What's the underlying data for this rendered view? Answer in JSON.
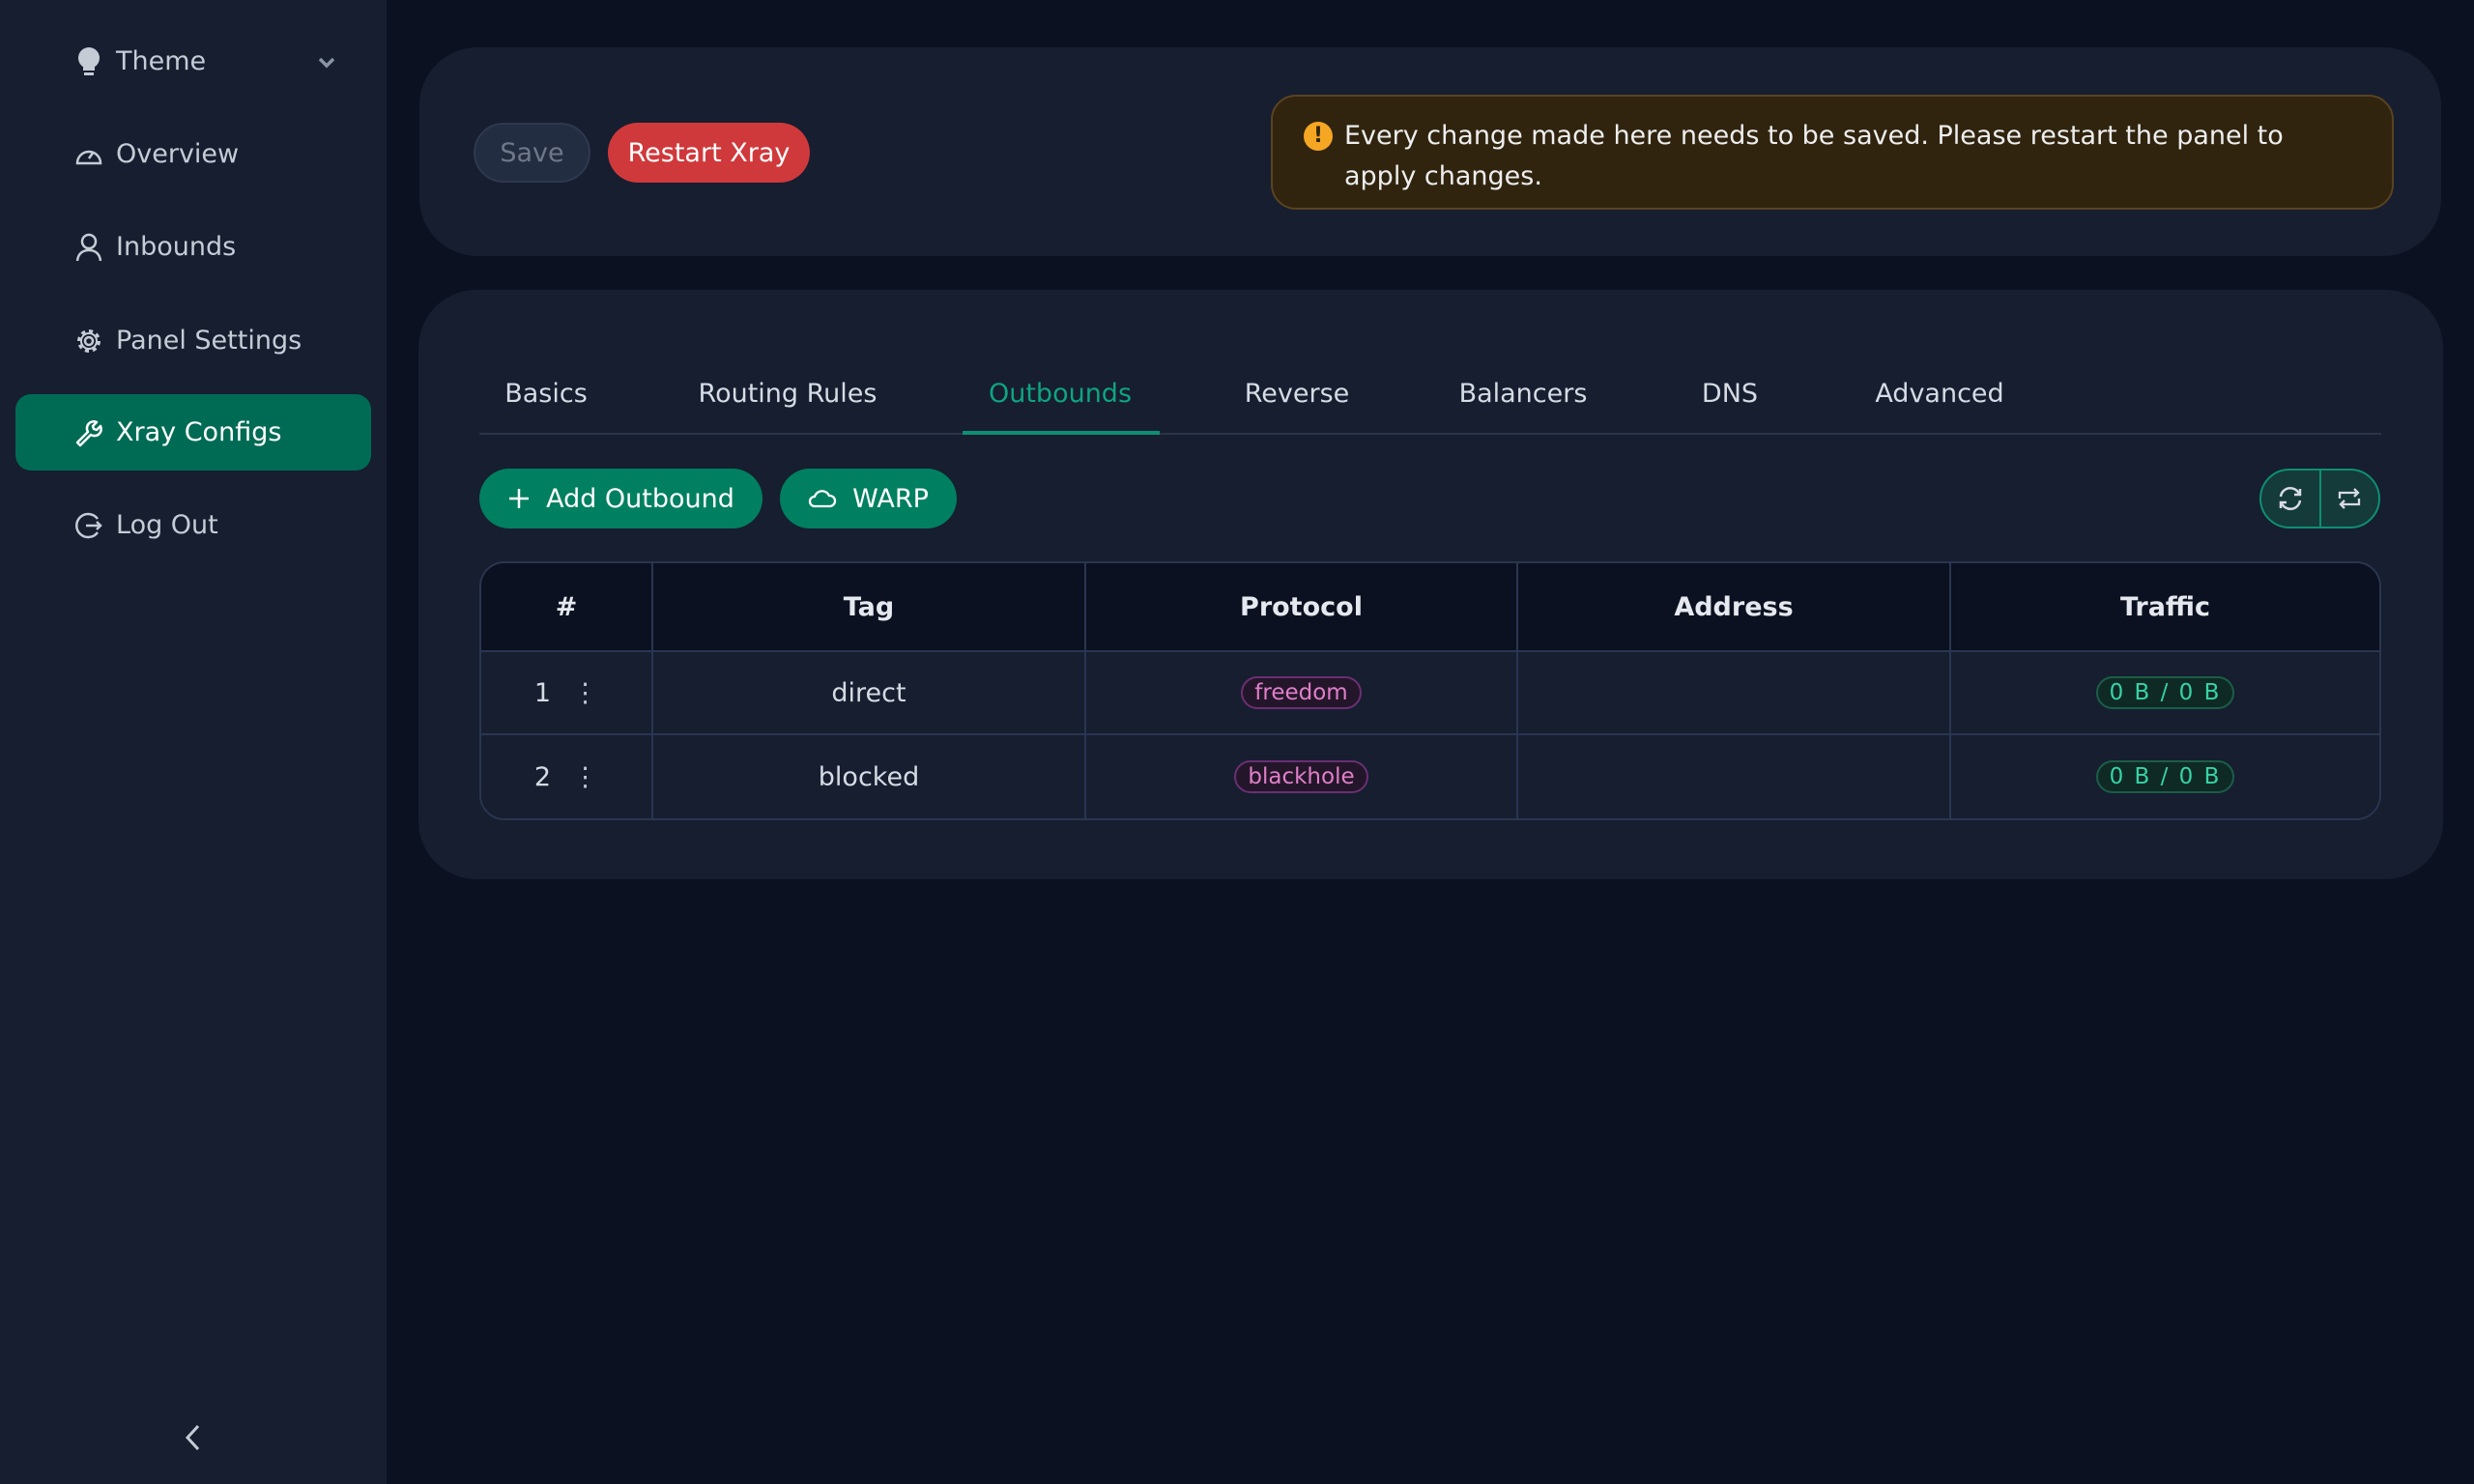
{
  "sidebar": {
    "items": [
      {
        "label": "Theme",
        "icon": "bulb-icon"
      },
      {
        "label": "Overview",
        "icon": "dashboard-icon"
      },
      {
        "label": "Inbounds",
        "icon": "user-icon"
      },
      {
        "label": "Panel Settings",
        "icon": "gear-icon"
      },
      {
        "label": "Xray Configs",
        "icon": "wrench-icon",
        "active": true
      },
      {
        "label": "Log Out",
        "icon": "logout-icon"
      }
    ]
  },
  "toolbar": {
    "save": "Save",
    "restart": "Restart Xray"
  },
  "alert": {
    "text": "Every change made here needs to be saved. Please restart the panel to apply changes."
  },
  "tabs": [
    "Basics",
    "Routing Rules",
    "Outbounds",
    "Reverse",
    "Balancers",
    "DNS",
    "Advanced"
  ],
  "active_tab": "Outbounds",
  "actions": {
    "add": "Add Outbound",
    "warp": "WARP"
  },
  "table": {
    "headers": [
      "#",
      "Tag",
      "Protocol",
      "Address",
      "Traffic"
    ],
    "rows": [
      {
        "num": "1",
        "tag": "direct",
        "protocol": "freedom",
        "address": "",
        "traffic": "0 B / 0 B"
      },
      {
        "num": "2",
        "tag": "blocked",
        "protocol": "blackhole",
        "address": "",
        "traffic": "0 B / 0 B"
      }
    ]
  },
  "colors": {
    "accent": "#008060",
    "danger": "#d0393b",
    "warning": "#f5a623"
  }
}
